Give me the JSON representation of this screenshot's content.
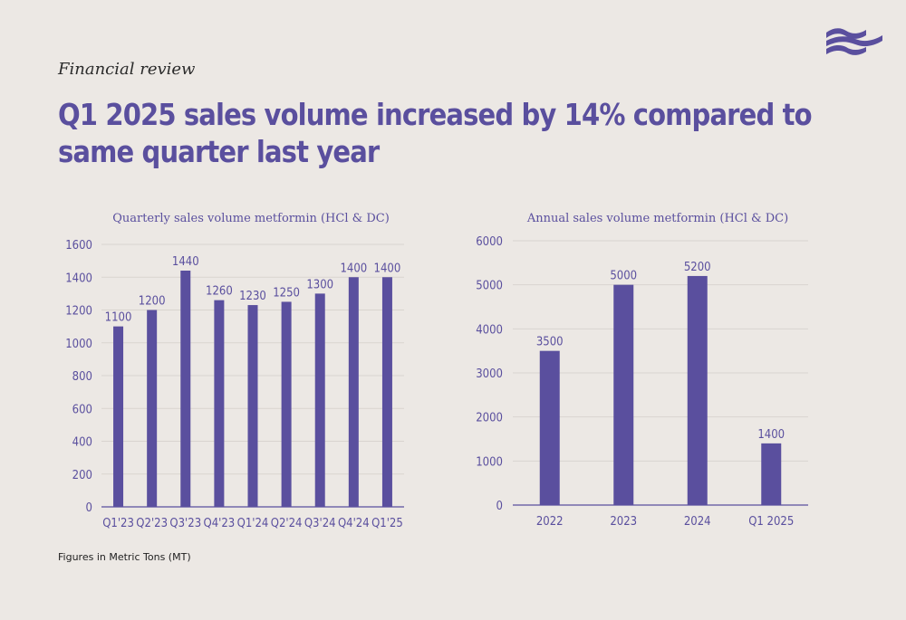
{
  "header": {
    "kicker": "Financial review",
    "headline": "Q1 2025 sales volume increased by 14% compared to same quarter last year"
  },
  "footnote": "Figures in Metric Tons (MT)",
  "colors": {
    "bar": "#5a4f9e",
    "grid": "#d9d4cf",
    "text": "#5a4f9e",
    "background": "#ece8e4"
  },
  "logo_icon": "wave-flag-icon",
  "chart_data": [
    {
      "type": "bar",
      "title": "Quarterly sales volume metformin (HCl & DC)",
      "categories": [
        "Q1'23",
        "Q2'23",
        "Q3'23",
        "Q4'23",
        "Q1'24",
        "Q2'24",
        "Q3'24",
        "Q4'24",
        "Q1'25"
      ],
      "values": [
        1100,
        1200,
        1440,
        1260,
        1230,
        1250,
        1300,
        1400,
        1400
      ],
      "yticks": [
        0,
        200,
        400,
        600,
        800,
        1000,
        1200,
        1400,
        1600
      ],
      "ylim": [
        0,
        1600
      ],
      "grid": true,
      "data_labels": true
    },
    {
      "type": "bar",
      "title": "Annual sales volume metformin (HCl & DC)",
      "categories": [
        "2022",
        "2023",
        "2024",
        "Q1 2025"
      ],
      "values": [
        3500,
        5000,
        5200,
        1400
      ],
      "yticks": [
        0,
        1000,
        2000,
        3000,
        4000,
        5000,
        6000
      ],
      "ylim": [
        0,
        6000
      ],
      "grid": true,
      "data_labels": true
    }
  ]
}
